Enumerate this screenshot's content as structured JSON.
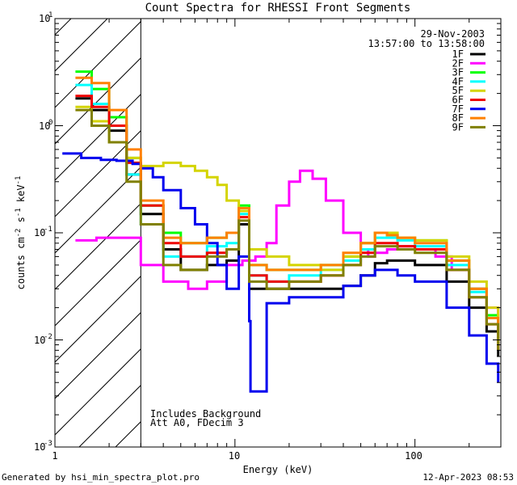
{
  "chart_data": {
    "type": "line",
    "title": "Count Spectra for RHESSI Front Segments",
    "xlabel": "Energy (keV)",
    "ylabel": "counts cm-2 s-1 keV-1",
    "x_scale": "log",
    "y_scale": "log",
    "xlim": [
      1,
      300
    ],
    "ylim": [
      0.001,
      10
    ],
    "x_ticks": [
      "1",
      "10",
      "100"
    ],
    "y_ticks": [
      "10^1",
      "10^0",
      "10^-1",
      "10^-2",
      "10^-3"
    ],
    "date": "29-Nov-2003",
    "time_range": "13:57:00 to 13:58:00",
    "notes": [
      "Includes Background",
      "Att A0, FDecim 3"
    ],
    "hatched_region_xmax": 3,
    "footer_left": "Generated by hsi_min_spectra_plot.pro",
    "footer_right": "12-Apr-2023 08:53",
    "series": [
      {
        "name": "1F",
        "color": "#000000",
        "x": [
          1.3,
          1.6,
          2.0,
          2.5,
          3.0,
          4.0,
          5.0,
          7.0,
          9.0,
          10.5,
          12.0,
          15.0,
          20.0,
          30.0,
          40.0,
          50.0,
          60.0,
          70.0,
          80.0,
          100.0,
          150.0,
          200.0,
          250.0,
          290.0
        ],
        "y": [
          1.8,
          1.4,
          0.9,
          0.35,
          0.15,
          0.07,
          0.045,
          0.05,
          0.055,
          0.12,
          0.03,
          0.03,
          0.03,
          0.03,
          0.032,
          0.04,
          0.052,
          0.055,
          0.055,
          0.05,
          0.035,
          0.02,
          0.012,
          0.007
        ]
      },
      {
        "name": "2F",
        "color": "#ff00ff",
        "x": [
          1.3,
          1.7,
          2.2,
          3.0,
          4.0,
          5.5,
          7.0,
          9.0,
          11.0,
          13.0,
          15.0,
          17.0,
          20.0,
          23.0,
          27.0,
          32.0,
          40.0,
          50.0,
          55.0,
          60.0,
          70.0,
          80.0,
          100.0,
          130.0,
          160.0,
          200.0,
          250.0,
          290.0
        ],
        "y": [
          0.085,
          0.09,
          0.09,
          0.05,
          0.035,
          0.03,
          0.035,
          0.05,
          0.055,
          0.06,
          0.08,
          0.18,
          0.3,
          0.38,
          0.32,
          0.2,
          0.1,
          0.07,
          0.06,
          0.065,
          0.07,
          0.075,
          0.07,
          0.06,
          0.045,
          0.03,
          0.02,
          0.012
        ]
      },
      {
        "name": "3F",
        "color": "#00ff00",
        "x": [
          1.3,
          1.6,
          2.0,
          2.5,
          3.0,
          4.0,
          5.0,
          7.0,
          9.0,
          10.5,
          12.0,
          15.0,
          20.0,
          30.0,
          40.0,
          50.0,
          60.0,
          70.0,
          80.0,
          100.0,
          150.0,
          200.0,
          250.0,
          290.0
        ],
        "y": [
          3.2,
          2.2,
          1.2,
          0.5,
          0.18,
          0.1,
          0.08,
          0.09,
          0.1,
          0.18,
          0.05,
          0.045,
          0.045,
          0.05,
          0.06,
          0.08,
          0.1,
          0.095,
          0.09,
          0.085,
          0.055,
          0.03,
          0.017,
          0.01
        ]
      },
      {
        "name": "4F",
        "color": "#00ffff",
        "x": [
          1.3,
          1.6,
          2.0,
          2.5,
          3.0,
          4.0,
          5.0,
          7.0,
          9.0,
          10.5,
          12.0,
          15.0,
          20.0,
          30.0,
          40.0,
          50.0,
          60.0,
          70.0,
          80.0,
          100.0,
          150.0,
          200.0,
          250.0,
          290.0
        ],
        "y": [
          2.4,
          1.6,
          1.0,
          0.35,
          0.12,
          0.06,
          0.06,
          0.075,
          0.08,
          0.15,
          0.04,
          0.035,
          0.04,
          0.045,
          0.055,
          0.07,
          0.09,
          0.09,
          0.085,
          0.075,
          0.05,
          0.028,
          0.016,
          0.009
        ]
      },
      {
        "name": "5F",
        "color": "#d4d400",
        "x": [
          1.3,
          1.6,
          2.0,
          2.5,
          3.0,
          3.5,
          4.0,
          5.0,
          6.0,
          7.0,
          8.0,
          9.0,
          10.5,
          12.0,
          15.0,
          20.0,
          30.0,
          40.0,
          50.0,
          60.0,
          70.0,
          80.0,
          100.0,
          150.0,
          200.0,
          250.0,
          290.0
        ],
        "y": [
          1.5,
          1.1,
          0.7,
          0.5,
          0.42,
          0.42,
          0.45,
          0.42,
          0.38,
          0.33,
          0.28,
          0.2,
          0.16,
          0.07,
          0.06,
          0.05,
          0.045,
          0.06,
          0.08,
          0.1,
          0.1,
          0.09,
          0.085,
          0.06,
          0.035,
          0.02,
          0.012
        ]
      },
      {
        "name": "6F",
        "color": "#ee0000",
        "x": [
          1.3,
          1.6,
          2.0,
          2.5,
          3.0,
          4.0,
          5.0,
          7.0,
          9.0,
          10.5,
          12.0,
          15.0,
          20.0,
          30.0,
          40.0,
          50.0,
          60.0,
          70.0,
          80.0,
          100.0,
          150.0,
          200.0,
          250.0,
          290.0
        ],
        "y": [
          1.9,
          1.5,
          1.0,
          0.45,
          0.18,
          0.08,
          0.06,
          0.065,
          0.07,
          0.14,
          0.04,
          0.035,
          0.035,
          0.04,
          0.05,
          0.065,
          0.08,
          0.08,
          0.075,
          0.07,
          0.045,
          0.025,
          0.014,
          0.008
        ]
      },
      {
        "name": "7F",
        "color": "#0000ee",
        "x": [
          1.1,
          1.4,
          1.8,
          2.2,
          2.7,
          3.0,
          3.5,
          4.0,
          5.0,
          6.0,
          7.0,
          8.0,
          9.0,
          10.5,
          12.0,
          12.2,
          15.0,
          20.0,
          30.0,
          40.0,
          50.0,
          60.0,
          70.0,
          80.0,
          100.0,
          150.0,
          200.0,
          250.0,
          290.0
        ],
        "y": [
          0.55,
          0.5,
          0.48,
          0.47,
          0.44,
          0.4,
          0.33,
          0.25,
          0.17,
          0.12,
          0.08,
          0.05,
          0.03,
          0.06,
          0.015,
          0.0033,
          0.022,
          0.025,
          0.025,
          0.032,
          0.04,
          0.045,
          0.045,
          0.04,
          0.035,
          0.02,
          0.011,
          0.006,
          0.004
        ]
      },
      {
        "name": "8F",
        "color": "#ff8000",
        "x": [
          1.3,
          1.6,
          2.0,
          2.5,
          3.0,
          4.0,
          5.0,
          7.0,
          9.0,
          10.5,
          12.0,
          15.0,
          20.0,
          30.0,
          40.0,
          50.0,
          60.0,
          70.0,
          80.0,
          100.0,
          150.0,
          200.0,
          250.0,
          290.0
        ],
        "y": [
          2.8,
          2.5,
          1.4,
          0.6,
          0.2,
          0.09,
          0.08,
          0.09,
          0.1,
          0.17,
          0.05,
          0.045,
          0.045,
          0.05,
          0.065,
          0.08,
          0.1,
          0.095,
          0.09,
          0.08,
          0.055,
          0.03,
          0.016,
          0.009
        ]
      },
      {
        "name": "9F",
        "color": "#808000",
        "x": [
          1.3,
          1.6,
          2.0,
          2.5,
          3.0,
          4.0,
          5.0,
          7.0,
          9.0,
          10.5,
          12.0,
          15.0,
          20.0,
          30.0,
          40.0,
          50.0,
          60.0,
          70.0,
          80.0,
          100.0,
          150.0,
          200.0,
          250.0,
          290.0
        ],
        "y": [
          1.4,
          1.0,
          0.7,
          0.3,
          0.12,
          0.05,
          0.045,
          0.06,
          0.07,
          0.13,
          0.035,
          0.03,
          0.035,
          0.04,
          0.05,
          0.06,
          0.075,
          0.075,
          0.07,
          0.065,
          0.045,
          0.025,
          0.014,
          0.008
        ]
      }
    ]
  }
}
